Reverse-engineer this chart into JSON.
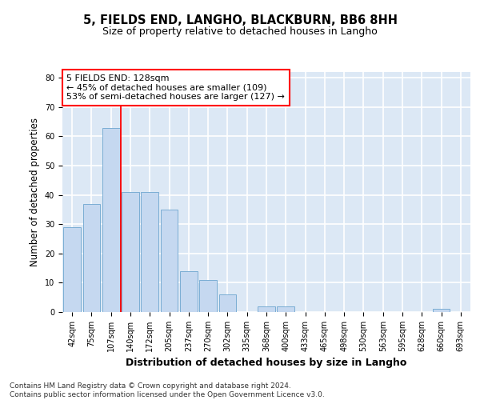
{
  "title": "5, FIELDS END, LANGHO, BLACKBURN, BB6 8HH",
  "subtitle": "Size of property relative to detached houses in Langho",
  "xlabel": "Distribution of detached houses by size in Langho",
  "ylabel": "Number of detached properties",
  "categories": [
    "42sqm",
    "75sqm",
    "107sqm",
    "140sqm",
    "172sqm",
    "205sqm",
    "237sqm",
    "270sqm",
    "302sqm",
    "335sqm",
    "368sqm",
    "400sqm",
    "433sqm",
    "465sqm",
    "498sqm",
    "530sqm",
    "563sqm",
    "595sqm",
    "628sqm",
    "660sqm",
    "693sqm"
  ],
  "values": [
    29,
    37,
    63,
    41,
    41,
    35,
    14,
    11,
    6,
    0,
    2,
    2,
    0,
    0,
    0,
    0,
    0,
    0,
    0,
    1,
    0
  ],
  "bar_color": "#c5d8f0",
  "bar_edge_color": "#7aadd4",
  "vline_x": 2.5,
  "vline_color": "red",
  "annotation_text": "5 FIELDS END: 128sqm\n← 45% of detached houses are smaller (109)\n53% of semi-detached houses are larger (127) →",
  "annotation_box_color": "white",
  "annotation_box_edge_color": "red",
  "ylim": [
    0,
    82
  ],
  "yticks": [
    0,
    10,
    20,
    30,
    40,
    50,
    60,
    70,
    80
  ],
  "background_color": "#dce8f5",
  "grid_color": "white",
  "footnote": "Contains HM Land Registry data © Crown copyright and database right 2024.\nContains public sector information licensed under the Open Government Licence v3.0.",
  "title_fontsize": 10.5,
  "subtitle_fontsize": 9,
  "xlabel_fontsize": 9,
  "ylabel_fontsize": 8.5,
  "tick_fontsize": 7,
  "annotation_fontsize": 8,
  "footnote_fontsize": 6.5
}
